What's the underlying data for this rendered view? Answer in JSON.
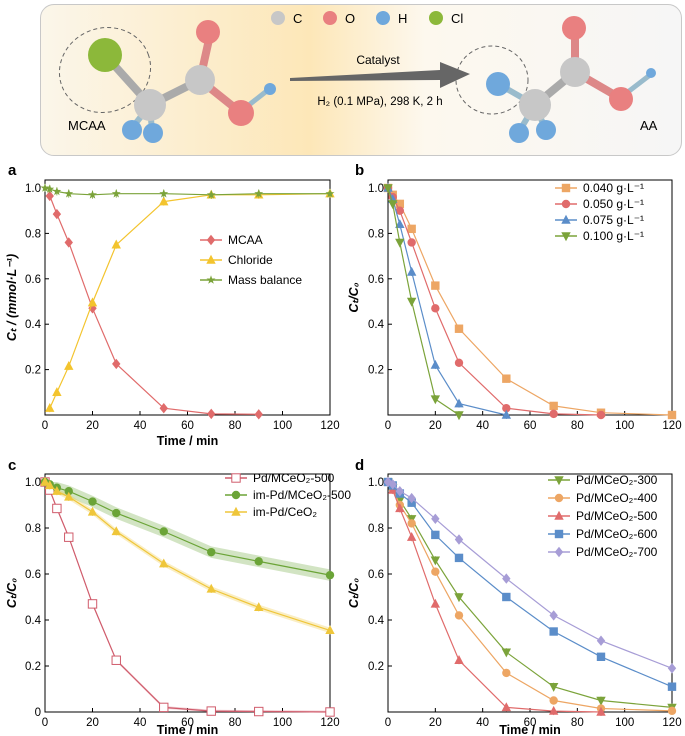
{
  "scheme": {
    "legend": [
      {
        "symbol": "C",
        "color": "#c7c7c7"
      },
      {
        "symbol": "O",
        "color": "#e98080"
      },
      {
        "symbol": "H",
        "color": "#6fa8dc"
      },
      {
        "symbol": "Cl",
        "color": "#8cb83a"
      }
    ],
    "reactant": "MCAA",
    "product": "AA",
    "arrow_top": "Catalyst",
    "arrow_bottom": "H₂ (0.1 MPa), 298 K, 2 h"
  },
  "colors": {
    "red": "#e06b6b",
    "yellow": "#f3c42e",
    "green": "#7ba33a",
    "orange": "#eda664",
    "blue": "#5b8dc9",
    "purple": "#a79dd6",
    "redalt": "#d05c6c",
    "green2": "#6ba437",
    "yellow2": "#efc63a"
  },
  "chart_data": [
    {
      "panel": "a",
      "type": "line",
      "ylabel": "Cₜ / (mmol·L⁻¹)",
      "xlabel": "Time / min",
      "xlim": [
        0,
        120
      ],
      "ylim": [
        0,
        1.0
      ],
      "xticks": [
        0,
        20,
        40,
        60,
        80,
        100,
        120
      ],
      "yticks": [
        0.2,
        0.4,
        0.6,
        0.8,
        1.0
      ],
      "legend_position": "center-right",
      "series": [
        {
          "name": "MCAA",
          "marker": "diamond",
          "color": "#e06b6b",
          "x": [
            2,
            5,
            10,
            20,
            30,
            50,
            70,
            90
          ],
          "y": [
            0.965,
            0.885,
            0.76,
            0.47,
            0.225,
            0.03,
            0.005,
            0.003
          ]
        },
        {
          "name": "Chloride",
          "marker": "triangle",
          "color": "#f3c42e",
          "x": [
            2,
            5,
            10,
            20,
            30,
            50,
            70,
            90,
            120
          ],
          "y": [
            0.03,
            0.1,
            0.215,
            0.495,
            0.75,
            0.94,
            0.97,
            0.97,
            0.975
          ]
        },
        {
          "name": "Mass balance",
          "marker": "star",
          "color": "#7ba33a",
          "x": [
            0,
            2,
            5,
            10,
            20,
            30,
            50,
            70,
            90,
            120
          ],
          "y": [
            1.0,
            0.995,
            0.985,
            0.975,
            0.97,
            0.975,
            0.975,
            0.97,
            0.975,
            0.975
          ]
        }
      ]
    },
    {
      "panel": "b",
      "type": "line",
      "ylabel": "Cₜ/C₀",
      "xlabel": "",
      "xlim": [
        0,
        120
      ],
      "ylim": [
        0,
        1.0
      ],
      "xticks": [
        0,
        20,
        40,
        60,
        80,
        100,
        120
      ],
      "yticks": [
        0.2,
        0.4,
        0.6,
        0.8,
        1.0
      ],
      "legend_position": "top-right",
      "series": [
        {
          "name": "0.040 g·L⁻¹",
          "marker": "square",
          "color": "#eda664",
          "x": [
            0,
            2,
            5,
            10,
            20,
            30,
            50,
            70,
            90,
            120
          ],
          "y": [
            1.0,
            0.97,
            0.93,
            0.82,
            0.57,
            0.38,
            0.16,
            0.04,
            0.01,
            0.0
          ]
        },
        {
          "name": "0.050 g·L⁻¹",
          "marker": "circle",
          "color": "#e06b6b",
          "x": [
            0,
            2,
            5,
            10,
            20,
            30,
            50,
            70,
            90
          ],
          "y": [
            1.0,
            0.96,
            0.9,
            0.76,
            0.47,
            0.23,
            0.03,
            0.005,
            0.0
          ]
        },
        {
          "name": "0.075 g·L⁻¹",
          "marker": "triangle",
          "color": "#5b8dc9",
          "x": [
            0,
            2,
            5,
            10,
            20,
            30,
            50
          ],
          "y": [
            1.0,
            0.95,
            0.84,
            0.63,
            0.22,
            0.05,
            0.0
          ]
        },
        {
          "name": "0.100 g·L⁻¹",
          "marker": "triangle-down",
          "color": "#7ba33a",
          "x": [
            0,
            2,
            5,
            10,
            20,
            30
          ],
          "y": [
            1.0,
            0.93,
            0.76,
            0.5,
            0.07,
            0.0
          ]
        }
      ]
    },
    {
      "panel": "c",
      "type": "line",
      "ylabel": "Cₜ/C₀",
      "xlabel": "Time / min",
      "xlim": [
        0,
        120
      ],
      "ylim": [
        0,
        1.0
      ],
      "xticks": [
        0,
        20,
        40,
        60,
        80,
        100,
        120
      ],
      "yticks": [
        0,
        0.2,
        0.4,
        0.6,
        0.8,
        1.0
      ],
      "legend_position": "top-right",
      "series": [
        {
          "name": "Pd/MCeO₂-500",
          "marker": "square",
          "color": "#d05c6c",
          "x": [
            0,
            2,
            5,
            10,
            20,
            30,
            50,
            70,
            90,
            120
          ],
          "y": [
            1.0,
            0.965,
            0.885,
            0.76,
            0.47,
            0.225,
            0.02,
            0.004,
            0.002,
            0.0
          ]
        },
        {
          "name": "im-Pd/MCeO₂-500",
          "marker": "circle",
          "color": "#6ba437",
          "x": [
            0,
            2,
            5,
            10,
            20,
            30,
            50,
            70,
            90,
            120
          ],
          "y": [
            1.0,
            0.99,
            0.975,
            0.96,
            0.915,
            0.865,
            0.785,
            0.695,
            0.655,
            0.595
          ]
        },
        {
          "name": "im-Pd/CeO₂",
          "marker": "triangle",
          "color": "#efc63a",
          "x": [
            0,
            2,
            5,
            10,
            20,
            30,
            50,
            70,
            90,
            120
          ],
          "y": [
            1.0,
            0.985,
            0.96,
            0.935,
            0.87,
            0.785,
            0.645,
            0.535,
            0.455,
            0.355
          ]
        }
      ]
    },
    {
      "panel": "d",
      "type": "line",
      "ylabel": "Cₜ/C₀",
      "xlabel": "Time / min",
      "xlim": [
        0,
        120
      ],
      "ylim": [
        0,
        1.0
      ],
      "xticks": [
        0,
        20,
        40,
        60,
        80,
        100,
        120
      ],
      "yticks": [
        0.2,
        0.4,
        0.6,
        0.8,
        1.0
      ],
      "legend_position": "top-right",
      "series": [
        {
          "name": "Pd/MCeO₂-300",
          "marker": "triangle-down",
          "color": "#7ba33a",
          "x": [
            0,
            2,
            5,
            10,
            20,
            30,
            50,
            70,
            90,
            120
          ],
          "y": [
            1.0,
            0.975,
            0.92,
            0.84,
            0.66,
            0.5,
            0.26,
            0.11,
            0.05,
            0.02
          ]
        },
        {
          "name": "Pd/MCeO₂-400",
          "marker": "circle",
          "color": "#eda664",
          "x": [
            0,
            2,
            5,
            10,
            20,
            30,
            50,
            70,
            90,
            120
          ],
          "y": [
            1.0,
            0.97,
            0.9,
            0.82,
            0.61,
            0.42,
            0.17,
            0.05,
            0.015,
            0.005
          ]
        },
        {
          "name": "Pd/MCeO₂-500",
          "marker": "triangle",
          "color": "#e06b6b",
          "x": [
            0,
            2,
            5,
            10,
            20,
            30,
            50,
            70,
            90
          ],
          "y": [
            1.0,
            0.965,
            0.885,
            0.76,
            0.47,
            0.225,
            0.02,
            0.004,
            0.0
          ]
        },
        {
          "name": "Pd/MCeO₂-600",
          "marker": "square",
          "color": "#5b8dc9",
          "x": [
            0,
            2,
            5,
            10,
            20,
            30,
            50,
            70,
            90,
            120
          ],
          "y": [
            1.0,
            0.985,
            0.95,
            0.91,
            0.77,
            0.67,
            0.5,
            0.35,
            0.24,
            0.11
          ]
        },
        {
          "name": "Pd/MCeO₂-700",
          "marker": "diamond",
          "color": "#a79dd6",
          "x": [
            0,
            2,
            5,
            10,
            20,
            30,
            50,
            70,
            90,
            120
          ],
          "y": [
            1.0,
            0.99,
            0.96,
            0.93,
            0.84,
            0.75,
            0.58,
            0.42,
            0.31,
            0.19
          ]
        }
      ]
    }
  ]
}
